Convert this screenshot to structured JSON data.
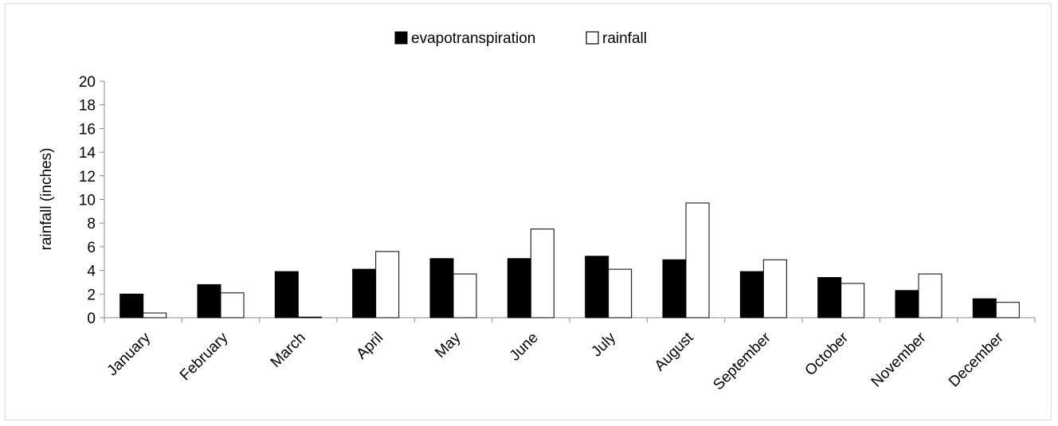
{
  "chart_data": {
    "type": "bar",
    "ylabel": "rainfall (inches)",
    "ylim": [
      0,
      20
    ],
    "yticks": [
      0,
      2,
      4,
      6,
      8,
      10,
      12,
      14,
      16,
      18,
      20
    ],
    "categories": [
      "January",
      "February",
      "March",
      "April",
      "May",
      "June",
      "July",
      "August",
      "September",
      "October",
      "November",
      "December"
    ],
    "legend_position": "top-center",
    "grid": false,
    "series": [
      {
        "name": "evapotranspiration",
        "color": "#000000",
        "values": [
          2.0,
          2.8,
          3.9,
          4.1,
          5.0,
          5.0,
          5.2,
          4.9,
          3.9,
          3.4,
          2.3,
          1.6
        ]
      },
      {
        "name": "rainfall",
        "color": "#ffffff",
        "values": [
          0.4,
          2.1,
          0.05,
          5.6,
          3.7,
          7.5,
          4.1,
          9.7,
          4.9,
          2.9,
          3.7,
          1.3
        ]
      }
    ]
  }
}
